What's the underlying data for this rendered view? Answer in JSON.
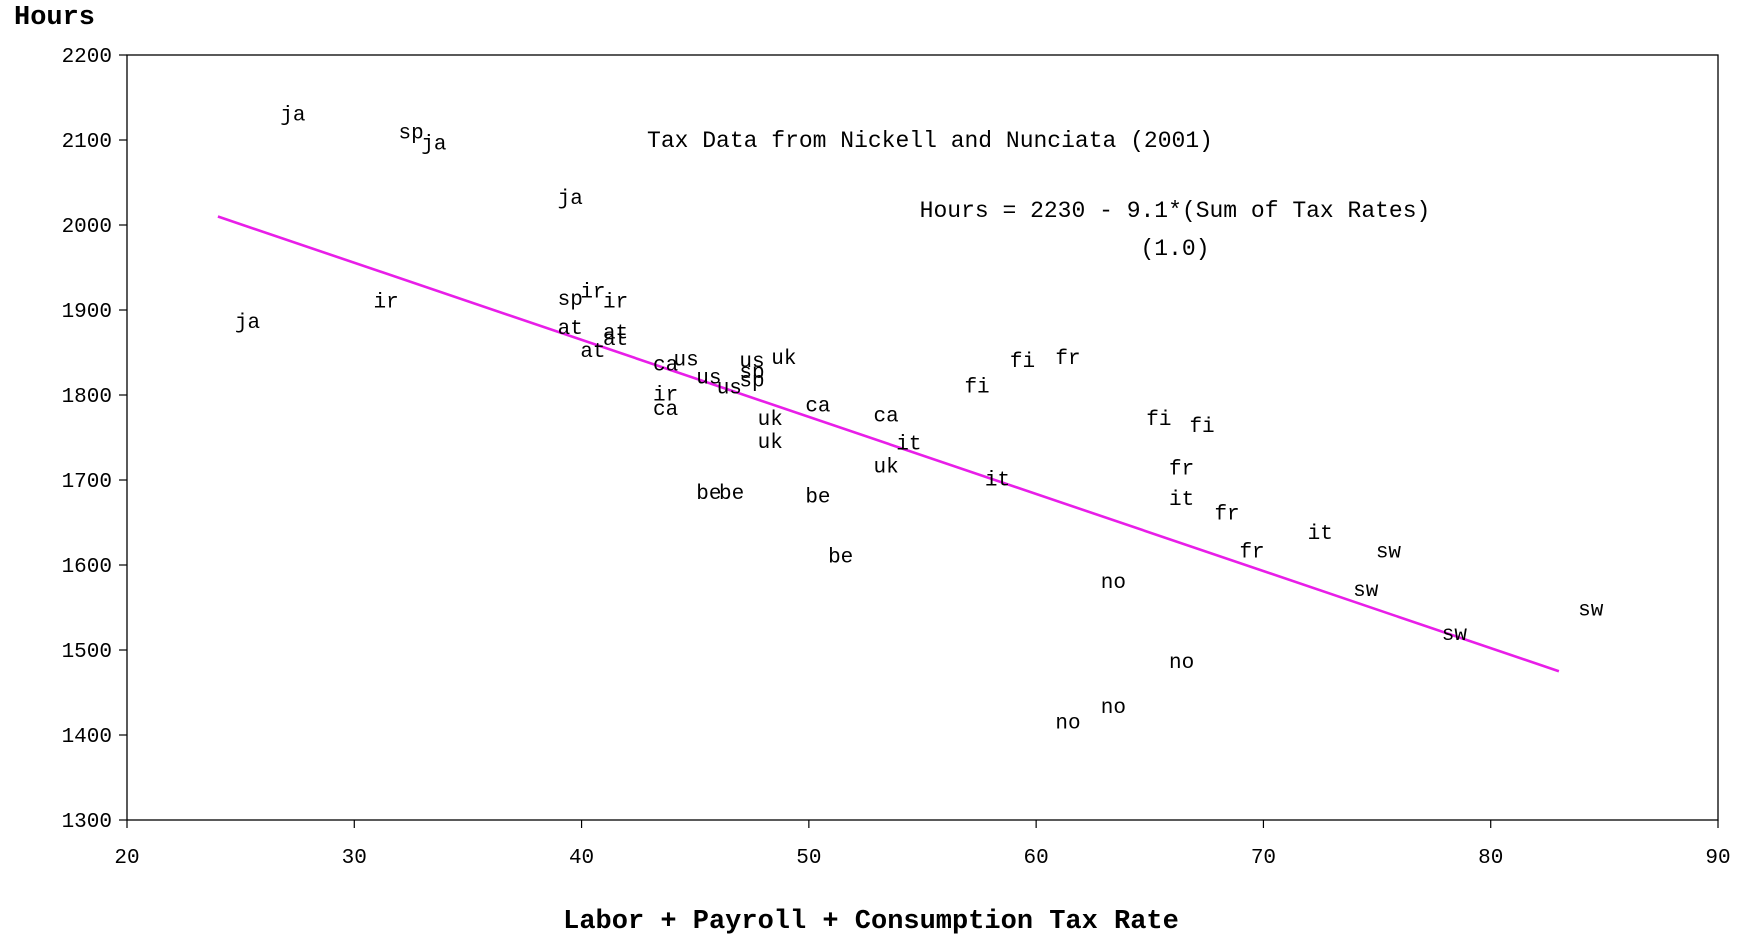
{
  "chart_data": {
    "type": "scatter",
    "title": "Tax Data from Nickell and Nunciata (2001)",
    "xlabel": "Labor + Payroll + Consumption Tax Rate",
    "ylabel": "Hours",
    "xlim": [
      20,
      90
    ],
    "ylim": [
      1300,
      2200
    ],
    "xticks": [
      "20",
      "30",
      "40",
      "50",
      "60",
      "70",
      "80",
      "90"
    ],
    "yticks": [
      "1300",
      "1400",
      "1500",
      "1600",
      "1700",
      "1800",
      "1900",
      "2000",
      "2100",
      "2200"
    ],
    "grid": false,
    "annotations": {
      "equation": "Hours = 2230 - 9.1*(Sum of Tax Rates)",
      "std_error": "(1.0)"
    },
    "fit_line": {
      "x": [
        24,
        83
      ],
      "y": [
        2010,
        1475
      ],
      "color": "#e81ee8"
    },
    "points": [
      {
        "label": "ja",
        "x": 27.3,
        "y": 2131
      },
      {
        "label": "sp",
        "x": 32.5,
        "y": 2110
      },
      {
        "label": "ja",
        "x": 33.5,
        "y": 2097
      },
      {
        "label": "ja",
        "x": 39.5,
        "y": 2033
      },
      {
        "label": "ir",
        "x": 31.4,
        "y": 1911
      },
      {
        "label": "ja",
        "x": 25.3,
        "y": 1887
      },
      {
        "label": "sp",
        "x": 39.5,
        "y": 1914
      },
      {
        "label": "ir",
        "x": 40.5,
        "y": 1923
      },
      {
        "label": "ir",
        "x": 41.5,
        "y": 1911
      },
      {
        "label": "at",
        "x": 39.5,
        "y": 1880
      },
      {
        "label": "at",
        "x": 41.5,
        "y": 1875
      },
      {
        "label": "at",
        "x": 41.5,
        "y": 1867
      },
      {
        "label": "at",
        "x": 40.5,
        "y": 1853
      },
      {
        "label": "ca",
        "x": 43.7,
        "y": 1837
      },
      {
        "label": "us",
        "x": 44.6,
        "y": 1843
      },
      {
        "label": "us",
        "x": 45.6,
        "y": 1822
      },
      {
        "label": "us",
        "x": 46.5,
        "y": 1810
      },
      {
        "label": "us",
        "x": 47.5,
        "y": 1841
      },
      {
        "label": "sp",
        "x": 47.5,
        "y": 1828
      },
      {
        "label": "sp",
        "x": 47.5,
        "y": 1818
      },
      {
        "label": "uk",
        "x": 48.9,
        "y": 1845
      },
      {
        "label": "ir",
        "x": 43.7,
        "y": 1802
      },
      {
        "label": "ca",
        "x": 43.7,
        "y": 1785
      },
      {
        "label": "ca",
        "x": 50.4,
        "y": 1789
      },
      {
        "label": "uk",
        "x": 48.3,
        "y": 1773
      },
      {
        "label": "uk",
        "x": 48.3,
        "y": 1746
      },
      {
        "label": "ca",
        "x": 53.4,
        "y": 1777
      },
      {
        "label": "it",
        "x": 54.4,
        "y": 1744
      },
      {
        "label": "uk",
        "x": 53.4,
        "y": 1717
      },
      {
        "label": "be",
        "x": 45.6,
        "y": 1686
      },
      {
        "label": "be",
        "x": 46.6,
        "y": 1686
      },
      {
        "label": "be",
        "x": 50.4,
        "y": 1682
      },
      {
        "label": "be",
        "x": 51.4,
        "y": 1611
      },
      {
        "label": "it",
        "x": 58.3,
        "y": 1702
      },
      {
        "label": "fi",
        "x": 57.4,
        "y": 1811
      },
      {
        "label": "fi",
        "x": 59.4,
        "y": 1841
      },
      {
        "label": "fr",
        "x": 61.4,
        "y": 1845
      },
      {
        "label": "fi",
        "x": 65.4,
        "y": 1773
      },
      {
        "label": "fi",
        "x": 67.3,
        "y": 1765
      },
      {
        "label": "fr",
        "x": 66.4,
        "y": 1715
      },
      {
        "label": "it",
        "x": 66.4,
        "y": 1679
      },
      {
        "label": "fr",
        "x": 68.4,
        "y": 1662
      },
      {
        "label": "fr",
        "x": 69.5,
        "y": 1617
      },
      {
        "label": "it",
        "x": 72.5,
        "y": 1639
      },
      {
        "label": "sw",
        "x": 75.5,
        "y": 1617
      },
      {
        "label": "sw",
        "x": 74.5,
        "y": 1572
      },
      {
        "label": "sw",
        "x": 78.4,
        "y": 1520
      },
      {
        "label": "sw",
        "x": 84.4,
        "y": 1549
      },
      {
        "label": "no",
        "x": 63.4,
        "y": 1581
      },
      {
        "label": "no",
        "x": 66.4,
        "y": 1487
      },
      {
        "label": "no",
        "x": 63.4,
        "y": 1434
      },
      {
        "label": "no",
        "x": 61.4,
        "y": 1416
      }
    ]
  }
}
